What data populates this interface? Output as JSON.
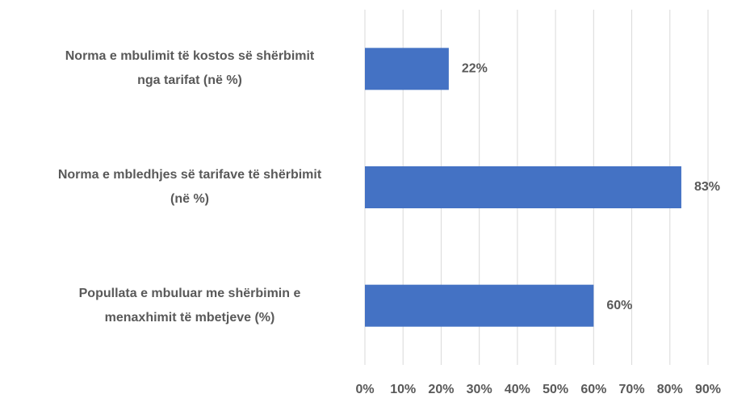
{
  "chart_data": {
    "type": "barh",
    "categories": [
      "Norma e mbulimit të kostos së shërbimit\nnga tarifat (në %)",
      "Norma e mbledhjes së tarifave të shërbimit\n(në %)",
      "Popullata e mbuluar me shërbimin e\nmenaxhimit të mbetjeve (%)"
    ],
    "values": [
      22,
      83,
      60
    ],
    "value_labels": [
      "22%",
      "83%",
      "60%"
    ],
    "color": "#4472c4",
    "xlim": [
      0,
      90
    ],
    "xticks": [
      {
        "value": 0,
        "label": "0%"
      },
      {
        "value": 10,
        "label": "10%"
      },
      {
        "value": 20,
        "label": "20%"
      },
      {
        "value": 30,
        "label": "30%"
      },
      {
        "value": 40,
        "label": "40%"
      },
      {
        "value": 50,
        "label": "50%"
      },
      {
        "value": 60,
        "label": "60%"
      },
      {
        "value": 70,
        "label": "70%"
      },
      {
        "value": 80,
        "label": "80%"
      },
      {
        "value": 90,
        "label": "90%"
      }
    ],
    "grid": true
  }
}
